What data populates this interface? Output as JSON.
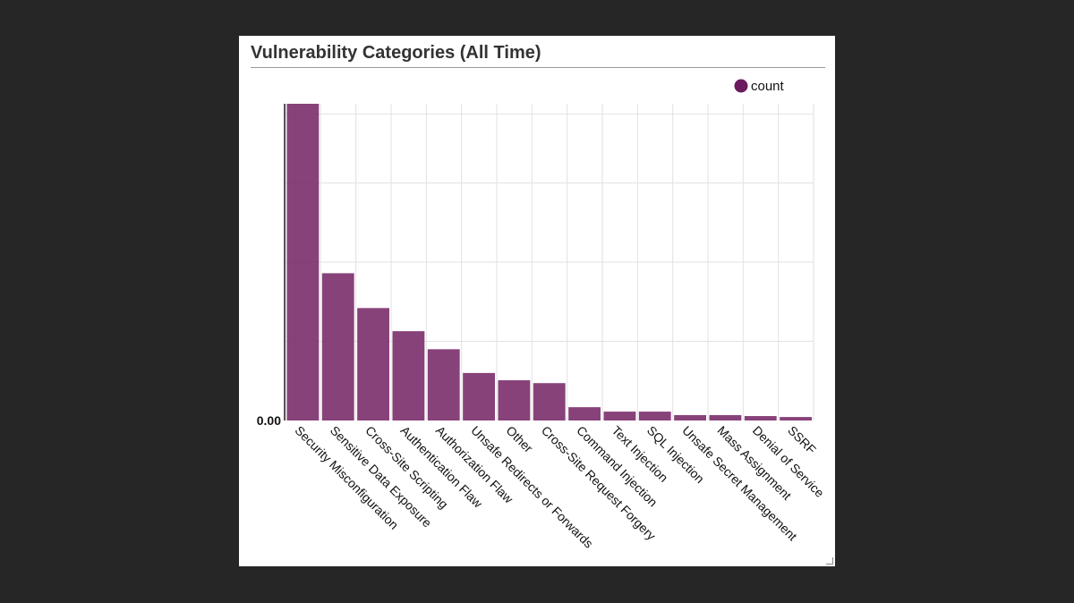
{
  "widget": {
    "title": "Vulnerability Categories (All Time)"
  },
  "chart_data": {
    "type": "bar",
    "title": "Vulnerability Categories (All Time)",
    "xlabel": "",
    "ylabel": "",
    "y_tick_label": "0.00",
    "ylim": [
      0,
      100
    ],
    "legend": {
      "position": "top-right",
      "entries": [
        "count"
      ]
    },
    "grid": true,
    "color": "#7b2d6b",
    "categories": [
      "Security Misconfiguration",
      "Sensitive Data Exposure",
      "Cross-Site Scripting",
      "Authentication Flaw",
      "Authorization Flaw",
      "Unsafe Redirects or Forwards",
      "Other",
      "Cross-Site Request Forgery",
      "Command Injection",
      "Text Injection",
      "SQL Injection",
      "Unsafe Secret Management",
      "Mass Assignment",
      "Denial of Service",
      "SSRF"
    ],
    "series": [
      {
        "name": "count",
        "values": [
          100,
          46.5,
          35.5,
          28.2,
          22.5,
          15,
          12.7,
          11.8,
          4.2,
          2.8,
          2.8,
          1.7,
          1.7,
          1.4,
          1.1
        ]
      }
    ]
  }
}
